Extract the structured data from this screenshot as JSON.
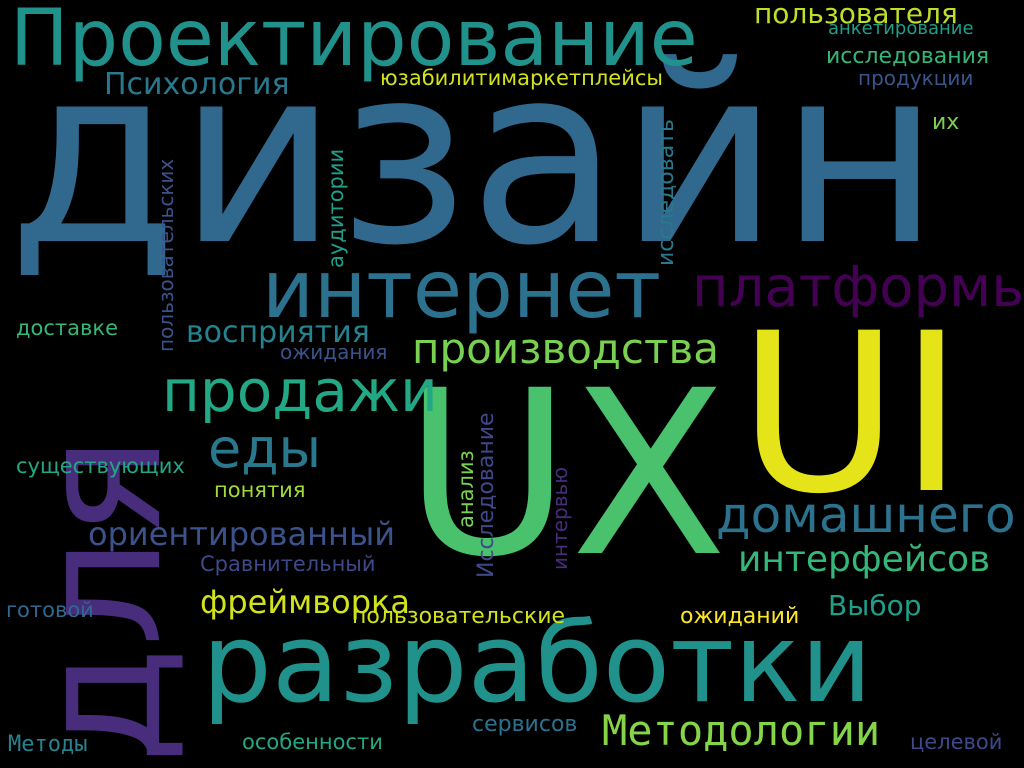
{
  "words": [
    {
      "id": "dizain",
      "text": "дизайн",
      "color": "#31688e"
    },
    {
      "id": "dlya",
      "text": "для",
      "color": "#472d7b"
    },
    {
      "id": "ui",
      "text": "UI",
      "color": "#e5e419"
    },
    {
      "id": "ux",
      "text": "UX",
      "color": "#4ac16d"
    },
    {
      "id": "razrabotki",
      "text": "разработки",
      "color": "#21918c"
    },
    {
      "id": "proektirovanie",
      "text": "Проектирование",
      "color": "#21918c"
    },
    {
      "id": "internet",
      "text": "интернет",
      "color": "#2c728e"
    },
    {
      "id": "platformy",
      "text": "платформы",
      "color": "#440154"
    },
    {
      "id": "proizvodstva",
      "text": "производства",
      "color": "#7ad151"
    },
    {
      "id": "prodazhi",
      "text": "продажи",
      "color": "#22a884"
    },
    {
      "id": "edy",
      "text": "еды",
      "color": "#2a788e"
    },
    {
      "id": "domashnego",
      "text": "домашнего",
      "color": "#2c728e"
    },
    {
      "id": "interfeisov",
      "text": "интерфейсов",
      "color": "#35b779"
    },
    {
      "id": "metodologii",
      "text": "Методологии",
      "color": "#86d549"
    },
    {
      "id": "orientirovanny",
      "text": "ориентированный",
      "color": "#3b528b"
    },
    {
      "id": "freimvorka",
      "text": "фреймворка",
      "color": "#d2e21b"
    },
    {
      "id": "vybor",
      "text": "Выбор",
      "color": "#1f9e89"
    },
    {
      "id": "psihologiya",
      "text": "Психология",
      "color": "#2a788e"
    },
    {
      "id": "polzovatelya",
      "text": "пользователя",
      "color": "#bddf26"
    },
    {
      "id": "anketirovanie",
      "text": "анкетирование",
      "color": "#1f9e89"
    },
    {
      "id": "issledovaniya",
      "text": "исследования",
      "color": "#35b779"
    },
    {
      "id": "produkcii",
      "text": "продукции",
      "color": "#39568c"
    },
    {
      "id": "yuzabiliti",
      "text": "юзабилитимаркетплейсы",
      "color": "#d2e21b"
    },
    {
      "id": "ih",
      "text": "их",
      "color": "#7ad151"
    },
    {
      "id": "vospriyatiya",
      "text": "восприятия",
      "color": "#26828e"
    },
    {
      "id": "ozhidaniya",
      "text": "ожидания",
      "color": "#3b528b"
    },
    {
      "id": "dostavke",
      "text": "доставке",
      "color": "#35b779"
    },
    {
      "id": "sushchestvuyushchih",
      "text": "существующих",
      "color": "#22a884"
    },
    {
      "id": "ponyatiya",
      "text": "понятия",
      "color": "#a0da39"
    },
    {
      "id": "sravnitelny",
      "text": "Сравнительный",
      "color": "#3e4989"
    },
    {
      "id": "gotovoy",
      "text": "готовой",
      "color": "#31688e"
    },
    {
      "id": "polzovatelskie",
      "text": "пользовательские",
      "color": "#d2e21b"
    },
    {
      "id": "ozhidaniy",
      "text": "ожиданий",
      "color": "#fde725"
    },
    {
      "id": "servisov",
      "text": "сервисов",
      "color": "#2c728e"
    },
    {
      "id": "celevoy",
      "text": "целевой",
      "color": "#3e4989"
    },
    {
      "id": "metody",
      "text": "Методы",
      "color": "#26828e"
    },
    {
      "id": "osobennosti",
      "text": "особенности",
      "color": "#22a884"
    },
    {
      "id": "polzovatelskih",
      "text": "пользовательских",
      "color": "#3b528b"
    },
    {
      "id": "auditorii",
      "text": "аудитории",
      "color": "#1f9e89"
    },
    {
      "id": "issledovat",
      "text": "исследовать",
      "color": "#2a788e"
    },
    {
      "id": "analiz",
      "text": "анализ",
      "color": "#7ad151"
    },
    {
      "id": "issledovanie",
      "text": "Исследование",
      "color": "#3e4989"
    },
    {
      "id": "intervyu",
      "text": "интервью",
      "color": "#472d7b"
    }
  ]
}
